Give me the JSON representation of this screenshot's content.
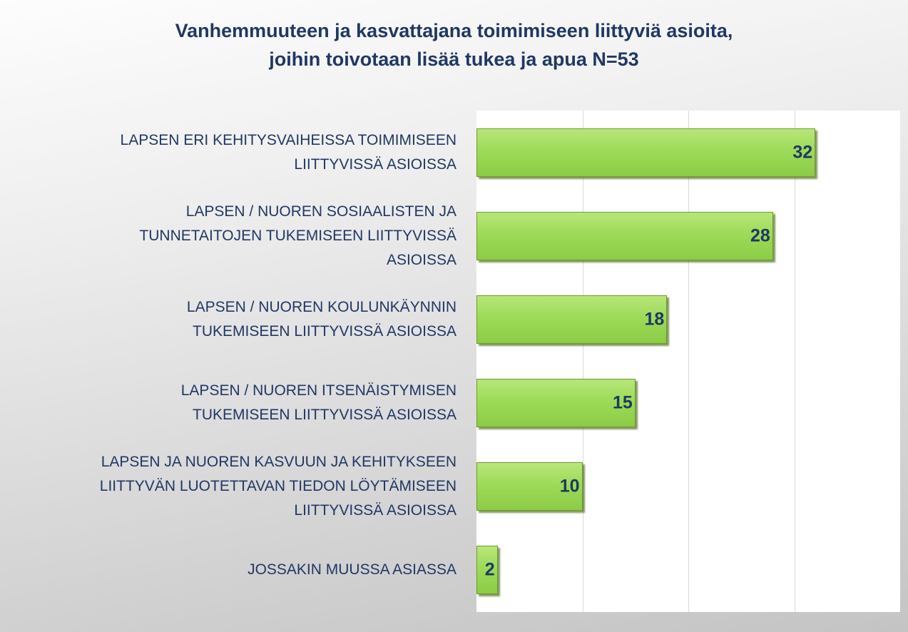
{
  "chart_data": {
    "type": "hbar",
    "title": [
      "Vanhemmuuteen ja kasvattajana toimimiseen liittyviä asioita,",
      "joihin toivotaan lisää tukea ja apua N=53"
    ],
    "categories": [
      "LAPSEN ERI KEHITYSVAIHEISSA TOIMIMISEEN\nLIITTYVISSÄ ASIOISSA",
      "LAPSEN / NUOREN SOSIAALISTEN JA\nTUNNETAITOJEN TUKEMISEEN LIITTYVISSÄ\nASIOISSA",
      "LAPSEN / NUOREN KOULUNKÄYNNIN\nTUKEMISEEN LIITTYVISSÄ ASIOISSA",
      "LAPSEN / NUOREN ITSENÄISTYMISEN\nTUKEMISEEN LIITTYVISSÄ ASIOISSA",
      "LAPSEN JA NUOREN KASVUUN JA KEHITYKSEEN\nLIITTYVÄN LUOTETTAVAN TIEDON LÖYTÄMISEEN\nLIITTYVISSÄ ASIOISSA",
      "JOSSAKIN MUUSSA ASIASSA"
    ],
    "values": [
      32,
      28,
      18,
      15,
      10,
      2
    ],
    "color": "#92d050",
    "xlim": [
      0,
      40
    ],
    "xticks": [
      0,
      10,
      20,
      30,
      40
    ],
    "grid": true
  }
}
